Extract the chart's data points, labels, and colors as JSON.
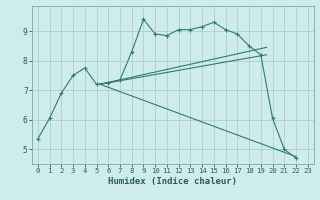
{
  "xlabel": "Humidex (Indice chaleur)",
  "background_color": "#ceecea",
  "line_color": "#2d7d6e",
  "grid_color": "#aecfcc",
  "xlim": [
    -0.5,
    23.5
  ],
  "ylim": [
    4.5,
    9.85
  ],
  "xticks": [
    0,
    1,
    2,
    3,
    4,
    5,
    6,
    7,
    8,
    9,
    10,
    11,
    12,
    13,
    14,
    15,
    16,
    17,
    18,
    19,
    20,
    21,
    22,
    23
  ],
  "yticks": [
    5,
    6,
    7,
    8,
    9
  ],
  "lines": [
    {
      "x": [
        0,
        1,
        2,
        3,
        4,
        5,
        6,
        7,
        8,
        9,
        10,
        11,
        12,
        13,
        14,
        15,
        16,
        17,
        18,
        19,
        20,
        21,
        22
      ],
      "y": [
        5.35,
        6.05,
        6.9,
        7.5,
        7.75,
        7.2,
        7.25,
        7.35,
        8.3,
        9.4,
        8.9,
        8.85,
        9.05,
        9.05,
        9.15,
        9.3,
        9.05,
        8.9,
        8.5,
        8.2,
        6.05,
        5.0,
        4.7
      ],
      "marker": true
    },
    {
      "x": [
        5.3,
        22.0
      ],
      "y": [
        7.2,
        4.75
      ],
      "marker": false
    },
    {
      "x": [
        5.3,
        19.5
      ],
      "y": [
        7.2,
        8.2
      ],
      "marker": false
    },
    {
      "x": [
        5.3,
        19.5
      ],
      "y": [
        7.2,
        8.45
      ],
      "marker": false
    }
  ]
}
